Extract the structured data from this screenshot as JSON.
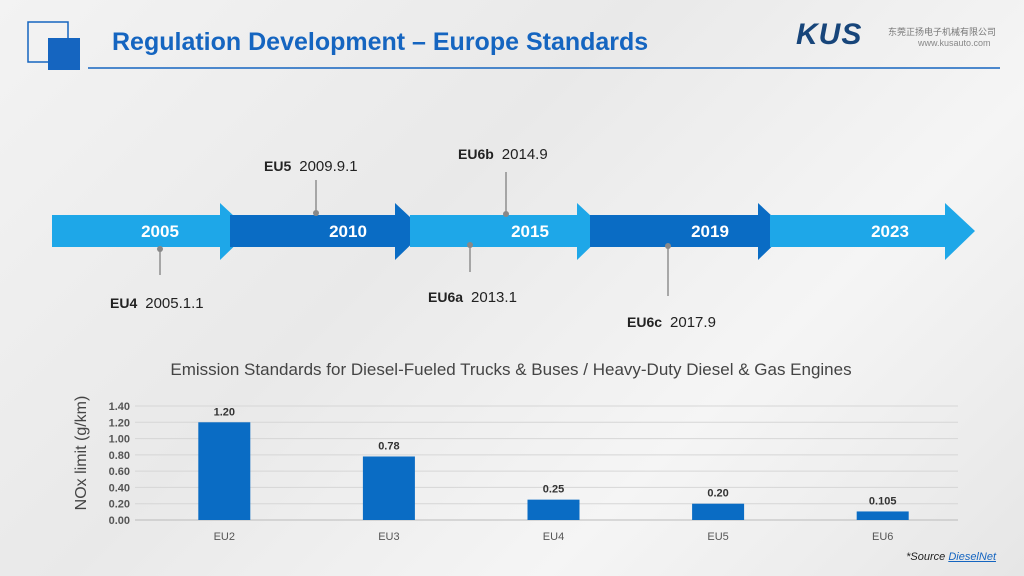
{
  "header": {
    "title": "Regulation Development – Europe Standards",
    "logo": "KUS",
    "company_cn": "东莞正扬电子机械有限公司",
    "website": "www.kusauto.com"
  },
  "timeline": {
    "years": [
      "2005",
      "2010",
      "2015",
      "2019",
      "2023"
    ],
    "milestones": [
      {
        "code": "EU4",
        "date": "2005.1.1",
        "side": "below"
      },
      {
        "code": "EU5",
        "date": "2009.9.1",
        "side": "above"
      },
      {
        "code": "EU6a",
        "date": "2013.1",
        "side": "below"
      },
      {
        "code": "EU6b",
        "date": "2014.9",
        "side": "above"
      },
      {
        "code": "EU6c",
        "date": "2017.9",
        "side": "below"
      }
    ],
    "colors": {
      "light": "#1ea7e8",
      "dark": "#0a6cc4"
    }
  },
  "chart_data": {
    "type": "bar",
    "title": "Emission Standards for Diesel-Fueled Trucks & Buses / Heavy-Duty Diesel & Gas Engines",
    "ylabel": "NOx limit (g/km)",
    "xlabel": "",
    "categories": [
      "EU2",
      "EU3",
      "EU4",
      "EU5",
      "EU6"
    ],
    "values": [
      1.2,
      0.78,
      0.25,
      0.2,
      0.105
    ],
    "data_labels": [
      "1.20",
      "0.78",
      "0.25",
      "0.20",
      "0.105"
    ],
    "ylim": [
      0,
      1.4
    ],
    "yticks": [
      "0.00",
      "0.20",
      "0.40",
      "0.60",
      "0.80",
      "1.00",
      "1.20",
      "1.40"
    ],
    "grid": true,
    "bar_color": "#0a6cc4"
  },
  "footer": {
    "source_prefix": "*Source ",
    "source_link": "DieselNet"
  }
}
